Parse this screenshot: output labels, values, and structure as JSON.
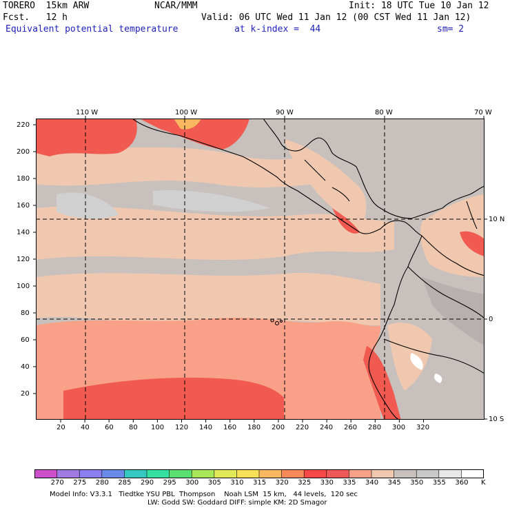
{
  "header": {
    "model": "TORERO  15km ARW",
    "center": "NCAR/MMM",
    "init": "Init: 18 UTC Tue 10 Jan 12",
    "fcst": "Fcst.   12 h",
    "valid": "Valid: 06 UTC Wed 11 Jan 12 (00 CST Wed 11 Jan 12)",
    "field": "Equivalent potential temperature",
    "level": "at k-index =  44",
    "smooth": "sm= 2"
  },
  "axes": {
    "lon_labels": [
      "110 W",
      "100 W",
      "90 W",
      "80 W",
      "70 W"
    ],
    "lat_labels": [
      "10 N",
      "0",
      "10 S"
    ],
    "x_ticks": [
      "20",
      "40",
      "60",
      "80",
      "100",
      "120",
      "140",
      "160",
      "180",
      "200",
      "220",
      "240",
      "260",
      "280",
      "300",
      "320"
    ],
    "y_ticks": [
      "220",
      "200",
      "180",
      "160",
      "140",
      "120",
      "100",
      "80",
      "60",
      "40",
      "20"
    ]
  },
  "legend": {
    "unit": "K",
    "labels": [
      "270",
      "275",
      "280",
      "285",
      "290",
      "295",
      "300",
      "305",
      "310",
      "315",
      "320",
      "325",
      "330",
      "335",
      "340",
      "345",
      "350",
      "355",
      "360"
    ],
    "colors": [
      "#cc50cc",
      "#a07ae0",
      "#8a7ef0",
      "#6a8ae8",
      "#35c8c0",
      "#35e0a0",
      "#5ae070",
      "#a8e858",
      "#e0e858",
      "#f8e058",
      "#f8b860",
      "#f88858",
      "#f84848",
      "#f05858",
      "#f8a088",
      "#f0c8b0",
      "#c8c0bc",
      "#c8c8c8",
      "#e8e8e8",
      "#ffffff"
    ]
  },
  "footer": {
    "line1": "Model Info: V3.3.1   Tiedtke YSU PBL  Thompson    Noah LSM  15 km,   44 levels,  120 sec",
    "line2": "LW: Godd SW: Goddard DIFF: simple KM: 2D Smagor"
  }
}
